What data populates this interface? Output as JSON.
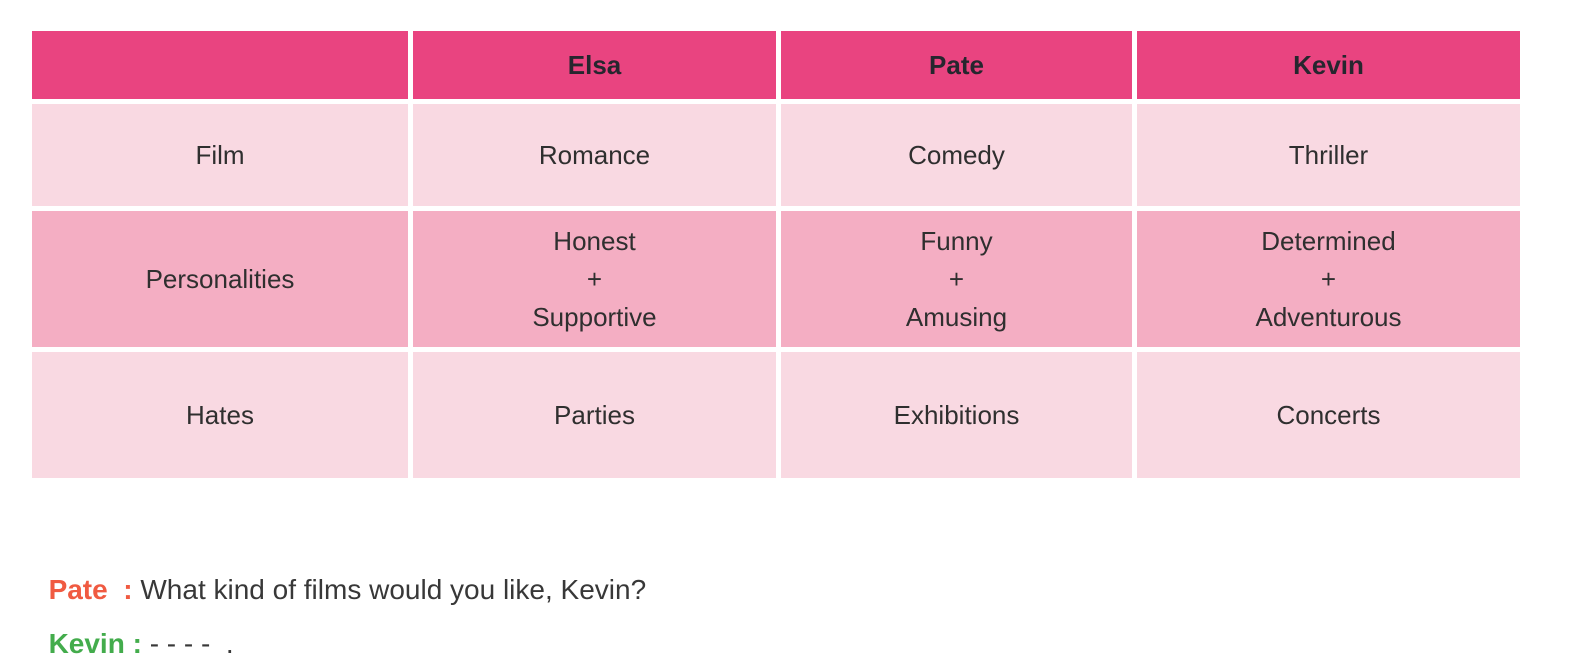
{
  "colors": {
    "page_background": "#ffffff",
    "table_header_bg": "#e94480",
    "table_row_light_bg": "#f9d9e2",
    "table_row_medium_bg": "#f4aec3",
    "table_header_text": "#26262e",
    "table_cell_text": "#2f2f2f",
    "pate_accent": "#f05a41",
    "kevin_accent": "#43ac4c",
    "dialogue_text": "#383838"
  },
  "table": {
    "header": [
      "",
      "Elsa",
      "Pate",
      "Kevin"
    ],
    "rows": [
      {
        "shade": "light",
        "cells": [
          [
            "Film"
          ],
          [
            "Romance"
          ],
          [
            "Comedy"
          ],
          [
            "Thriller"
          ]
        ]
      },
      {
        "shade": "medium",
        "cells": [
          [
            "Personalities"
          ],
          [
            "Honest",
            "+",
            "Supportive"
          ],
          [
            "Funny",
            "+",
            "Amusing"
          ],
          [
            "Determined",
            "+",
            "Adventurous"
          ]
        ]
      },
      {
        "shade": "light",
        "cells": [
          [
            "Hates"
          ],
          [
            "Parties"
          ],
          [
            "Exhibitions"
          ],
          [
            "Concerts"
          ]
        ]
      }
    ]
  },
  "dialogue": [
    {
      "speaker": "Pate  :",
      "text": " What kind of films would you like, Kevin?"
    },
    {
      "speaker": "Kevin : ",
      "text": "- - - -  ."
    }
  ]
}
